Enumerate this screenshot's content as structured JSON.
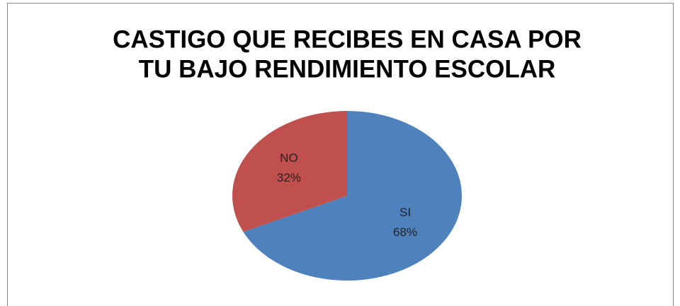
{
  "chart_data": {
    "type": "pie",
    "title": [
      "CASTIGO QUE RECIBES EN CASA POR",
      "TU BAJO RENDIMIENTO ESCOLAR"
    ],
    "categories": [
      "SI",
      "NO"
    ],
    "values": [
      68,
      32
    ],
    "value_labels": [
      "68%",
      "32%"
    ],
    "colors": [
      "#4f81bd",
      "#c0504d"
    ]
  }
}
